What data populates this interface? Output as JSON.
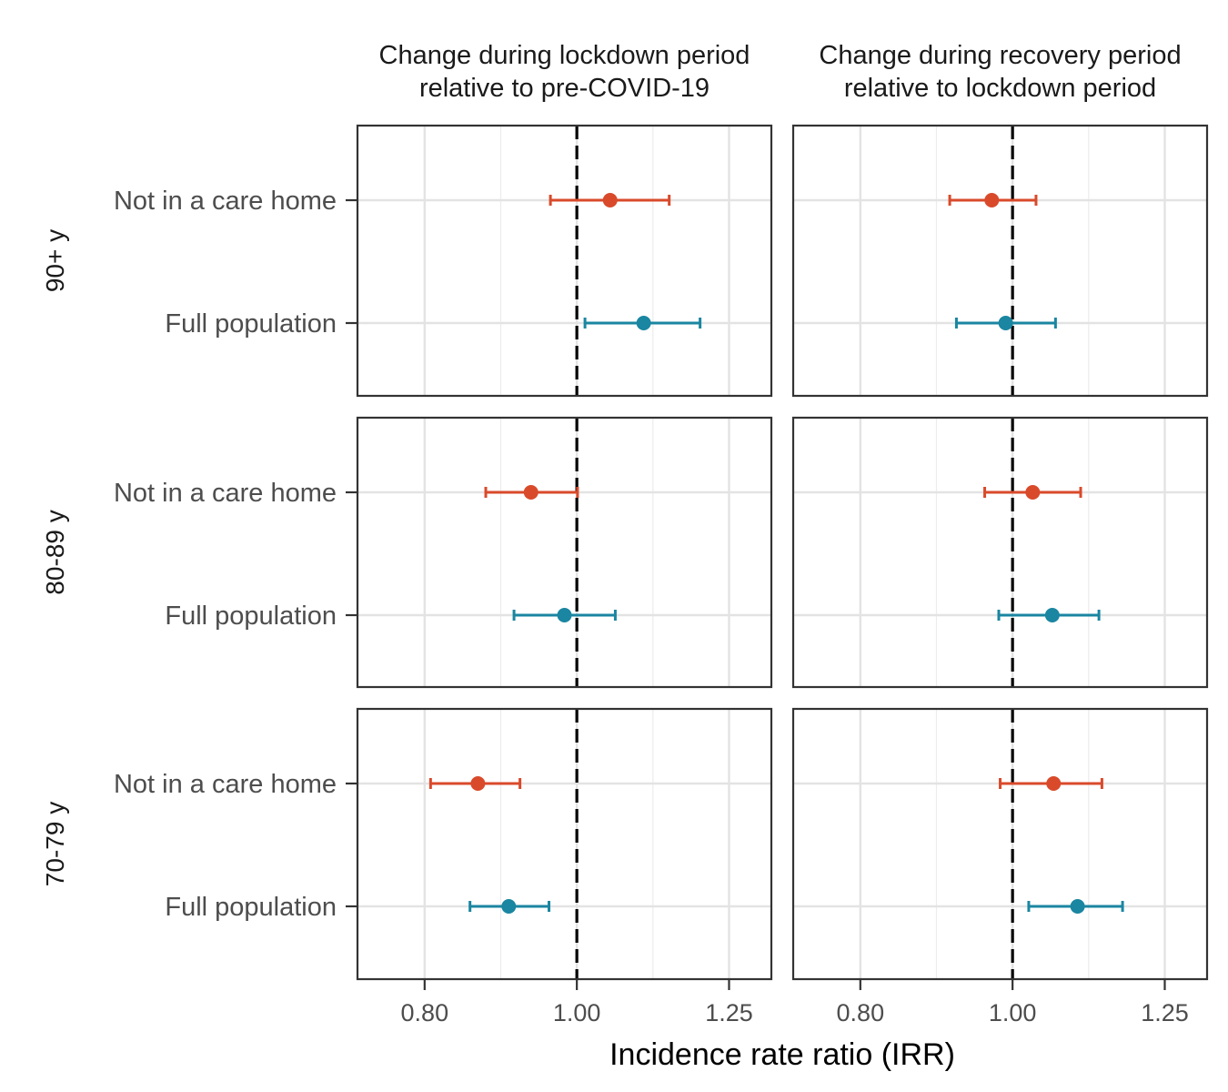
{
  "chart_data": {
    "type": "scatter",
    "subtype": "forest-plot",
    "xlabel": "Incidence rate ratio (IRR)",
    "x_scale": "log",
    "xlim": [
      0.725,
      1.33
    ],
    "x_ticks": [
      0.8,
      1.0,
      1.25
    ],
    "x_tick_labels": [
      "0.80",
      "1.00",
      "1.25"
    ],
    "reference_line": 1.0,
    "grid": true,
    "colors": {
      "Not in a care home": "#d94a2b",
      "Full population": "#1a86a1"
    },
    "columns": [
      "Change during lockdown period\nrelative to pre-COVID-19",
      "Change during recovery period\nrelative to lockdown period"
    ],
    "rows": [
      "90+ y",
      "80-89 y",
      "70-79 y"
    ],
    "categories": [
      "Not in a care home",
      "Full population"
    ],
    "panels": [
      {
        "row": "90+ y",
        "column": 0,
        "points": [
          {
            "category": "Not in a care home",
            "estimate": 1.05,
            "lower": 0.962,
            "upper": 1.145
          },
          {
            "category": "Full population",
            "estimate": 1.103,
            "lower": 1.012,
            "upper": 1.198
          }
        ]
      },
      {
        "row": "90+ y",
        "column": 1,
        "points": [
          {
            "category": "Not in a care home",
            "estimate": 0.97,
            "lower": 0.912,
            "upper": 1.035
          },
          {
            "category": "Full population",
            "estimate": 0.99,
            "lower": 0.921,
            "upper": 1.065
          }
        ]
      },
      {
        "row": "80-89 y",
        "column": 0,
        "points": [
          {
            "category": "Not in a care home",
            "estimate": 0.935,
            "lower": 0.875,
            "upper": 1.001
          },
          {
            "category": "Full population",
            "estimate": 0.982,
            "lower": 0.912,
            "upper": 1.058
          }
        ]
      },
      {
        "row": "80-89 y",
        "column": 1,
        "points": [
          {
            "category": "Not in a care home",
            "estimate": 1.03,
            "lower": 0.96,
            "upper": 1.105
          },
          {
            "category": "Full population",
            "estimate": 1.06,
            "lower": 0.98,
            "upper": 1.135
          }
        ]
      },
      {
        "row": "70-79 y",
        "column": 0,
        "points": [
          {
            "category": "Not in a care home",
            "estimate": 0.865,
            "lower": 0.807,
            "upper": 0.92
          },
          {
            "category": "Full population",
            "estimate": 0.905,
            "lower": 0.855,
            "upper": 0.96
          }
        ]
      },
      {
        "row": "70-79 y",
        "column": 1,
        "points": [
          {
            "category": "Not in a care home",
            "estimate": 1.062,
            "lower": 0.982,
            "upper": 1.14
          },
          {
            "category": "Full population",
            "estimate": 1.1,
            "lower": 1.024,
            "upper": 1.175
          }
        ]
      }
    ]
  }
}
